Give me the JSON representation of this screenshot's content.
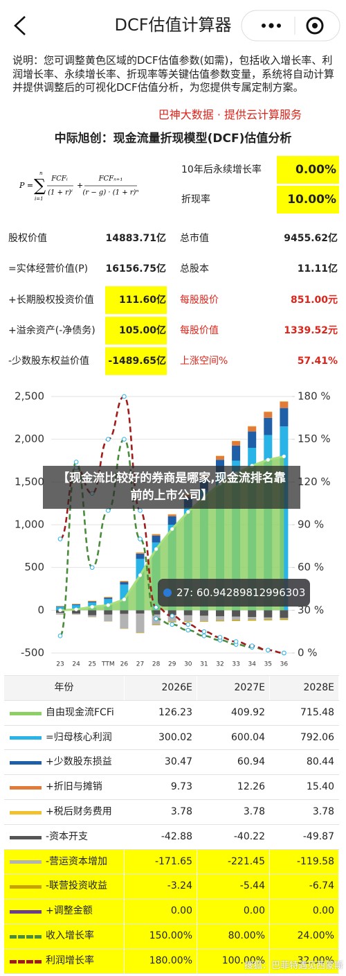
{
  "header": {
    "title": "DCF估值计算器"
  },
  "intro": {
    "text": "说明：您可调整黄色区域的DCF估值参数(如需)，包括收入增长率、利润增长率、永续增长率、折现率等关键估值参数变量，系统将自动计算并提供调整后的可视化DCF估值分析，为您提供专属定制方案。",
    "credit": "巴神大数据 · 提供云计算服务"
  },
  "model": {
    "title": "中际旭创：现金流量折现模型(DCF)估值分析",
    "formula": {
      "lhs": "P =",
      "sum": "∑",
      "upper": "n",
      "lower": "i=1",
      "num1": "FCFᵢ",
      "den1": "(1 + r)ⁱ",
      "plus": "+",
      "num2": "FCFₙ₊₁",
      "den2": "(r − g) · (1 + r)ⁿ"
    },
    "params": [
      {
        "label": "10年后永续增长率",
        "value": "0.00%"
      },
      {
        "label": "折现率",
        "value": "10.00%"
      }
    ]
  },
  "valuation": {
    "rows": [
      [
        {
          "label": "股权价值",
          "value": "14883.71亿"
        },
        {
          "label": "总市值",
          "value": "9455.62亿"
        }
      ],
      [
        {
          "label": "=实体经营价值(P)",
          "value": "16156.75亿"
        },
        {
          "label": "总股本",
          "value": "11.11亿"
        }
      ],
      [
        {
          "label": "+长期股权投资价值",
          "value": "111.60亿",
          "editable": true
        },
        {
          "label": "每股股价",
          "value": "851.00元",
          "red": true
        }
      ],
      [
        {
          "label": "+溢余资产(-净债务)",
          "value": "105.00亿",
          "editable": true
        },
        {
          "label": "每股价值",
          "value": "1339.52元",
          "red": true
        }
      ],
      [
        {
          "label": "-少数股东权益价值",
          "value": "-1489.65亿",
          "editable": true
        },
        {
          "label": "上涨空间%",
          "value": "57.41%",
          "red": true
        }
      ]
    ]
  },
  "chart_data": {
    "type": "combo",
    "categories": [
      "23",
      "24",
      "25",
      "TTM",
      "26",
      "27",
      "28",
      "29",
      "30",
      "31",
      "32",
      "33",
      "34",
      "35",
      "36"
    ],
    "ylim": [
      -500,
      2500
    ],
    "yticks": [
      -500,
      0,
      500,
      {
        "value": 1000,
        "label": "1,000"
      },
      {
        "value": 1500,
        "label": "1,500"
      },
      {
        "value": 2000,
        "label": "2,000"
      },
      {
        "value": 2500,
        "label": "2,500"
      }
    ],
    "y2lim": [
      0,
      180
    ],
    "y2ticks": [
      {
        "value": 0,
        "label": "0 %"
      },
      {
        "value": 30,
        "label": "30 %"
      },
      {
        "value": 60,
        "label": "60 %"
      },
      {
        "value": 90,
        "label": "90 %"
      },
      {
        "value": 120,
        "label": "120 %"
      },
      {
        "value": 150,
        "label": "150 %"
      },
      {
        "value": 180,
        "label": "180 %"
      }
    ],
    "grid": true,
    "series": [
      {
        "name": "自由现金流FCFi",
        "type": "area",
        "color": "#8ccf63",
        "values": [
          0,
          10,
          40,
          60,
          126.23,
          409.92,
          715.48,
          950,
          1150,
          1320,
          1480,
          1600,
          1690,
          1760,
          1800
        ]
      },
      {
        "name": "=归母核心利润",
        "type": "bar",
        "color": "#2ab3e6",
        "values": [
          40,
          60,
          90,
          130,
          300.02,
          600.04,
          792.06,
          1000,
          1200,
          1400,
          1600,
          1750,
          1900,
          2050,
          2150
        ]
      },
      {
        "name": "+少数股东损益",
        "type": "bar",
        "color": "#1f5fa8",
        "values": [
          5,
          8,
          12,
          15,
          30.47,
          60.94,
          80.44,
          100,
          120,
          140,
          160,
          175,
          190,
          200,
          215
        ]
      },
      {
        "name": "+折旧与摊销",
        "type": "bar",
        "color": "#e07b39",
        "values": [
          5,
          6,
          7,
          8,
          9.73,
          12.26,
          15.4,
          20,
          28,
          36,
          44,
          52,
          60,
          70,
          75
        ]
      },
      {
        "name": "+税后财务费用",
        "type": "bar",
        "color": "#f2c12e",
        "values": [
          2,
          2,
          3,
          3,
          3.78,
          3.78,
          3.78,
          4,
          4,
          4,
          4,
          4,
          4,
          4,
          4
        ]
      },
      {
        "name": "-资本开支",
        "type": "bar",
        "color": "#555555",
        "values": [
          -30,
          -40,
          -60,
          -50,
          -42.88,
          -40.22,
          -49.87,
          -55,
          -60,
          -65,
          -70,
          -75,
          -80,
          -85,
          -90
        ]
      },
      {
        "name": "-营运资本增加",
        "type": "bar",
        "color": "#b3b3b3",
        "values": [
          -20,
          -10,
          -20,
          -80,
          -171.65,
          -221.45,
          -119.58,
          -80,
          -70,
          -60,
          -50,
          -40,
          -30,
          -20,
          -10
        ]
      },
      {
        "name": "-联营投资收益",
        "type": "bar",
        "color": "#c8a200",
        "values": [
          -1,
          -1,
          -2,
          -2,
          -3.24,
          -5.44,
          -6.74,
          -7,
          -8,
          -9,
          -10,
          -11,
          -12,
          -13,
          -14
        ]
      },
      {
        "name": "+调整金额",
        "type": "bar",
        "color": "#6a3d8f",
        "values": [
          0,
          0,
          0,
          0,
          0,
          0,
          0,
          0,
          0,
          0,
          0,
          0,
          0,
          0,
          0
        ]
      },
      {
        "name": "收入增长率",
        "type": "line",
        "axis": "y2",
        "dashed": true,
        "color": "#4a8c3c",
        "values": [
          12,
          134,
          60,
          100,
          150,
          80,
          24,
          20,
          16,
          12,
          9,
          6,
          4,
          2,
          0
        ]
      },
      {
        "name": "利润增长率",
        "type": "line",
        "axis": "y2",
        "dashed": true,
        "color": "#a01c1c",
        "values": [
          80,
          130,
          112,
          150,
          180,
          100,
          32,
          26,
          20,
          15,
          11,
          8,
          5,
          2,
          0
        ]
      }
    ]
  },
  "overlay": {
    "banner": "【现金流比较好的券商是哪家,现金流排名靠前的上市公司】",
    "tooltip": "27: 60.94289812996303"
  },
  "table": {
    "header": "年份",
    "columns": [
      "2026E",
      "2027E",
      "2028E"
    ],
    "rows": [
      {
        "values": [
          "126.23",
          "409.92",
          "715.48"
        ]
      },
      {
        "values": [
          "300.02",
          "600.04",
          "792.06"
        ]
      },
      {
        "values": [
          "30.47",
          "60.94",
          "80.44"
        ]
      },
      {
        "values": [
          "9.73",
          "12.26",
          "15.40"
        ]
      },
      {
        "values": [
          "3.78",
          "3.78",
          "3.78"
        ]
      },
      {
        "values": [
          "-42.88",
          "-40.22",
          "-49.87"
        ]
      },
      {
        "values": [
          "-171.65",
          "-221.45",
          "-119.58"
        ],
        "editable": true
      },
      {
        "values": [
          "-3.24",
          "-5.44",
          "-6.74"
        ],
        "editable": true
      },
      {
        "values": [
          "0.00",
          "0.00",
          "0.00"
        ],
        "editable": true
      },
      {
        "values": [
          "150.00%",
          "80.00%",
          "24.00%"
        ],
        "editable": true
      },
      {
        "values": [
          "180.00%",
          "100.00%",
          "32.00%"
        ],
        "editable": true
      }
    ]
  },
  "watermark": "搜狐：巴菲特遇见西蒙斯"
}
